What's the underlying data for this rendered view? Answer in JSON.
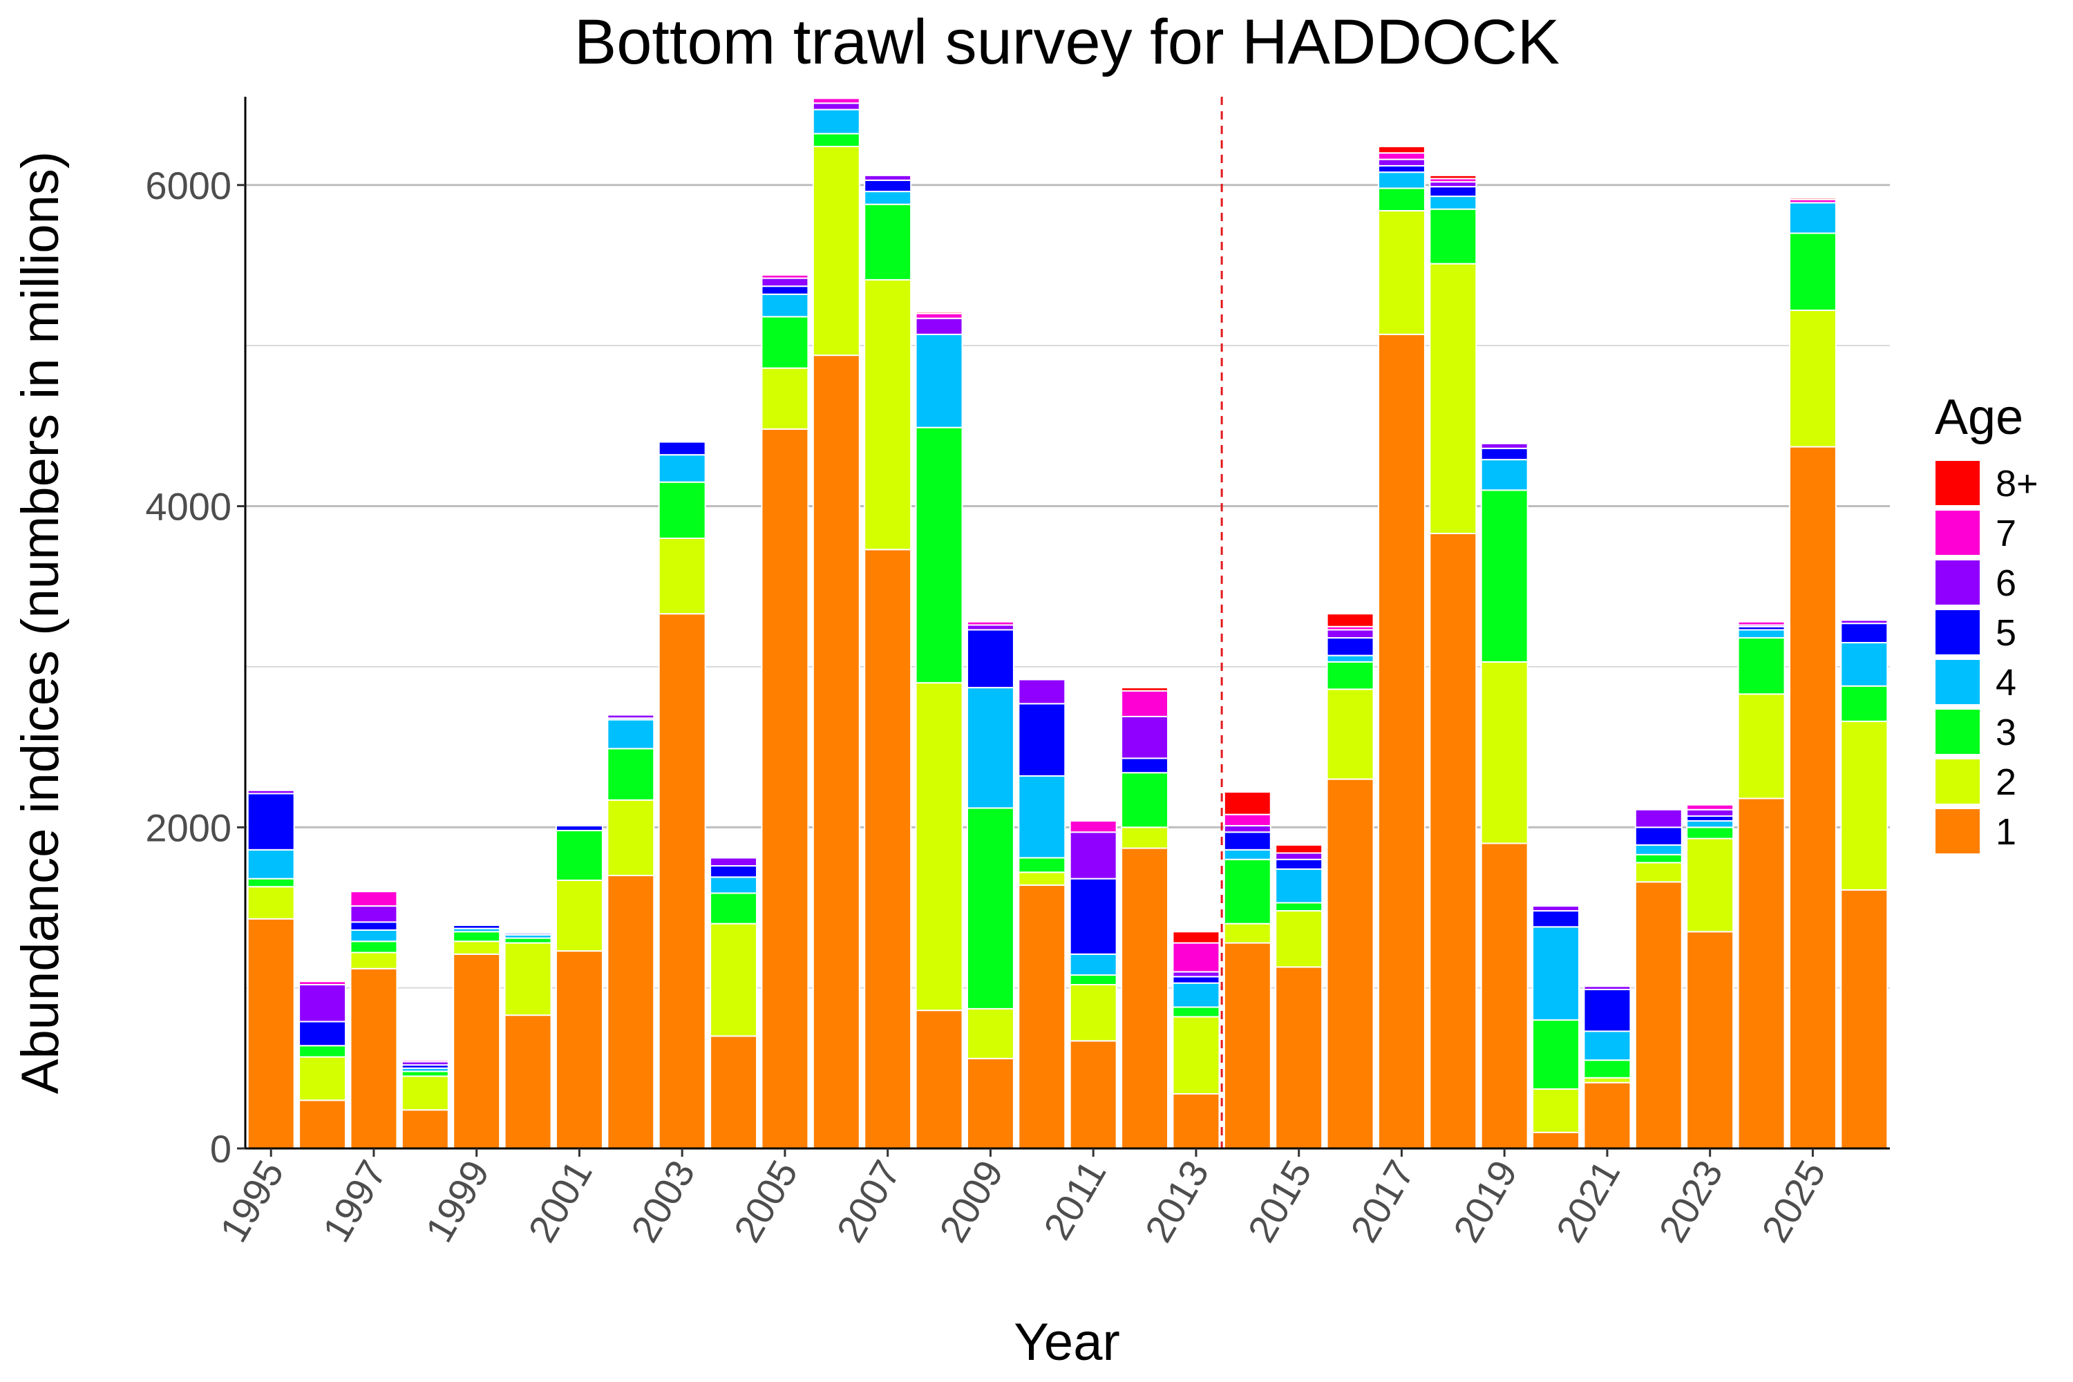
{
  "chart_data": {
    "type": "bar",
    "stacked": true,
    "title": "Bottom trawl survey for HADDOCK",
    "xlabel": "Year",
    "ylabel": "Abundance indices (numbers in millions)",
    "ylim": [
      0,
      6550
    ],
    "y_ticks": [
      0,
      2000,
      4000,
      6000
    ],
    "x_tick_labels": [
      "1995",
      "1997",
      "1999",
      "2001",
      "2003",
      "2005",
      "2007",
      "2009",
      "2011",
      "2013",
      "2015",
      "2017",
      "2019",
      "2021",
      "2023",
      "2025"
    ],
    "grid": "horizontal",
    "legend_position": "right",
    "legend_title": "Age",
    "reference_line": {
      "x_between": [
        "2013",
        "2014"
      ],
      "style": "dashed",
      "color": "#E41A1C"
    },
    "categories": [
      "1995",
      "1996",
      "1997",
      "1998",
      "1999",
      "2000",
      "2001",
      "2002",
      "2003",
      "2004",
      "2005",
      "2006",
      "2007",
      "2008",
      "2009",
      "2010",
      "2011",
      "2012",
      "2013",
      "2014",
      "2015",
      "2016",
      "2017",
      "2018",
      "2019",
      "2020",
      "2021",
      "2022",
      "2023",
      "2024",
      "2025",
      "2026"
    ],
    "series": [
      {
        "name": "1",
        "color": "#FF7F00",
        "values": [
          1430,
          300,
          1120,
          240,
          1210,
          830,
          1230,
          1700,
          3330,
          700,
          4480,
          4940,
          3730,
          860,
          560,
          1640,
          670,
          1870,
          340,
          1280,
          1130,
          2300,
          5070,
          3830,
          1900,
          100,
          410,
          1660,
          1350,
          2180,
          4370,
          1610
        ]
      },
      {
        "name": "2",
        "color": "#D4FF00",
        "values": [
          200,
          270,
          100,
          210,
          80,
          450,
          440,
          470,
          470,
          700,
          380,
          1300,
          1680,
          2040,
          310,
          80,
          350,
          130,
          480,
          120,
          350,
          560,
          770,
          1680,
          1130,
          270,
          30,
          120,
          580,
          650,
          850,
          1050
        ]
      },
      {
        "name": "3",
        "color": "#00FF1A",
        "values": [
          50,
          70,
          70,
          30,
          60,
          30,
          310,
          320,
          350,
          190,
          320,
          80,
          470,
          1590,
          1250,
          90,
          60,
          340,
          60,
          400,
          50,
          170,
          140,
          340,
          1070,
          430,
          110,
          50,
          70,
          350,
          480,
          220
        ]
      },
      {
        "name": "4",
        "color": "#00BFFF",
        "values": [
          180,
          0,
          70,
          20,
          20,
          20,
          0,
          180,
          170,
          100,
          140,
          150,
          80,
          580,
          750,
          510,
          130,
          0,
          150,
          60,
          210,
          40,
          100,
          80,
          190,
          580,
          180,
          60,
          40,
          50,
          190,
          270
        ]
      },
      {
        "name": "5",
        "color": "#0000FF",
        "values": [
          350,
          150,
          50,
          20,
          20,
          10,
          30,
          10,
          80,
          70,
          50,
          0,
          70,
          0,
          360,
          450,
          470,
          90,
          40,
          110,
          60,
          110,
          40,
          60,
          70,
          100,
          260,
          110,
          30,
          20,
          0,
          120
        ]
      },
      {
        "name": "6",
        "color": "#8F00FF",
        "values": [
          20,
          230,
          100,
          20,
          0,
          0,
          0,
          20,
          0,
          50,
          50,
          40,
          30,
          100,
          30,
          150,
          290,
          260,
          30,
          40,
          40,
          50,
          40,
          30,
          30,
          30,
          20,
          110,
          40,
          10,
          0,
          20
        ]
      },
      {
        "name": "7",
        "color": "#FF00D4",
        "values": [
          0,
          20,
          90,
          10,
          0,
          0,
          0,
          0,
          0,
          0,
          20,
          30,
          0,
          30,
          20,
          0,
          70,
          160,
          180,
          70,
          0,
          20,
          40,
          20,
          0,
          0,
          0,
          0,
          30,
          20,
          20,
          0
        ]
      },
      {
        "name": "8+",
        "color": "#FF0000",
        "values": [
          0,
          0,
          0,
          0,
          0,
          0,
          0,
          0,
          0,
          0,
          0,
          0,
          0,
          10,
          0,
          0,
          0,
          20,
          70,
          140,
          50,
          80,
          40,
          20,
          0,
          0,
          0,
          0,
          0,
          0,
          10,
          0
        ]
      }
    ]
  }
}
